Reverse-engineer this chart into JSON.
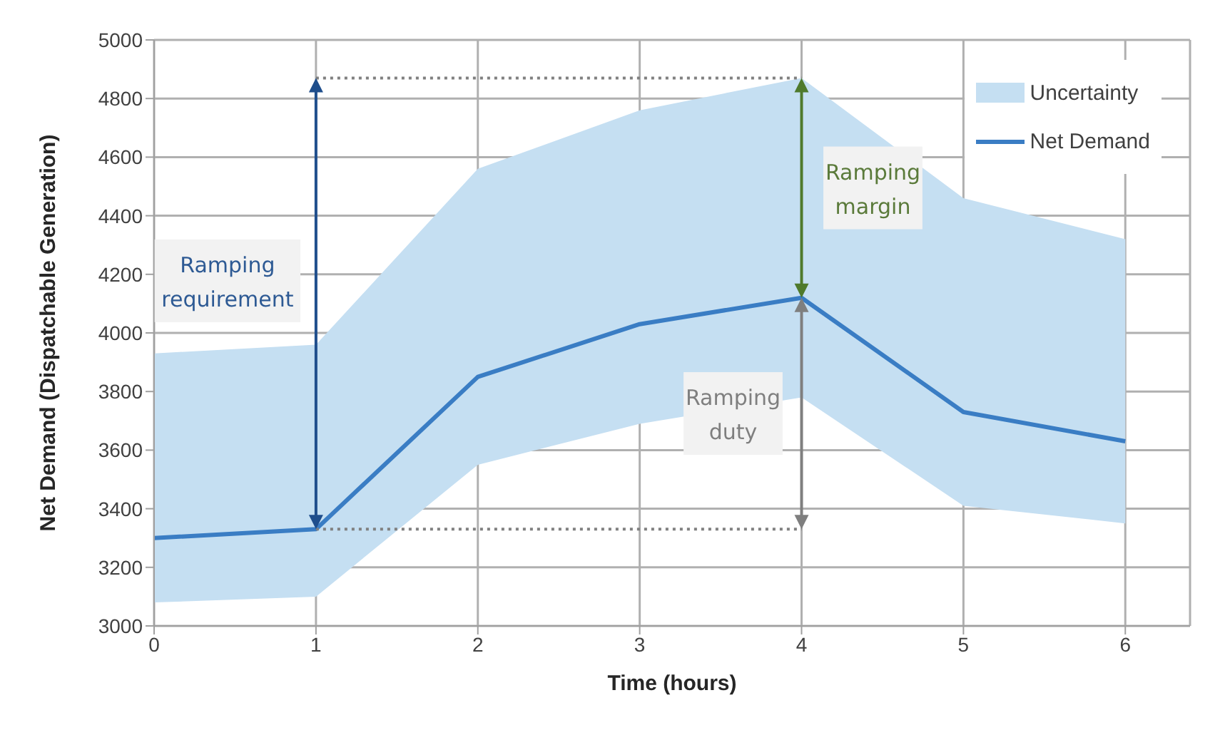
{
  "chart_data": {
    "type": "line",
    "xlabel": "Time (hours)",
    "ylabel": "Net Demand (Dispatchable Generation)",
    "x": [
      0,
      1,
      2,
      3,
      4,
      5,
      6
    ],
    "xlim": [
      0,
      6.4
    ],
    "xticks": [
      0,
      1,
      2,
      3,
      4,
      5,
      6
    ],
    "ylim": [
      3000,
      5000
    ],
    "yticks": [
      3000,
      3200,
      3400,
      3600,
      3800,
      4000,
      4200,
      4400,
      4600,
      4800,
      5000
    ],
    "series": [
      {
        "name": "Net Demand",
        "color": "#3a7dc4",
        "values": [
          3300,
          3330,
          3850,
          4030,
          4120,
          3730,
          3630
        ],
        "lower": [
          3080,
          3100,
          3550,
          3690,
          3780,
          3410,
          3350
        ],
        "upper": [
          3930,
          3960,
          4560,
          4760,
          4870,
          4460,
          4320
        ]
      }
    ],
    "annotations": [
      "Ramping requirement",
      "Ramping margin",
      "Ramping duty",
      "Uncertainty"
    ],
    "grid": true,
    "legend": "top right",
    "marker": "none",
    "line_style": "solid"
  }
}
